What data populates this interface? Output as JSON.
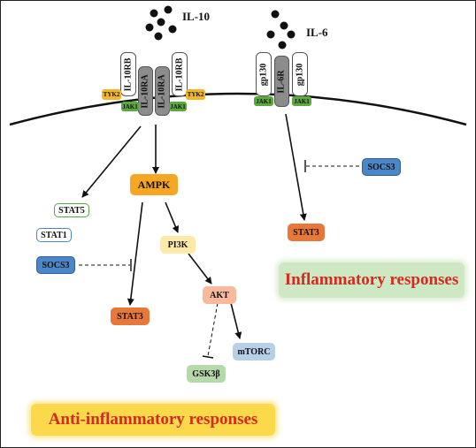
{
  "ligands": {
    "il10": "IL-10",
    "il6": "IL-6"
  },
  "il10_receptor": {
    "chains": [
      "IL-10RB",
      "IL-10RA",
      "IL-10RA",
      "IL-10RB"
    ],
    "tyk2": "TYK2",
    "jak1": "JAK1"
  },
  "il6_receptor": {
    "chains": [
      "gp130",
      "IL-6R",
      "gp130"
    ],
    "jak1": "JAK1"
  },
  "nodes": {
    "ampk": "AMPK",
    "stat5": "STAT5",
    "stat1": "STAT1",
    "socs3_left": "SOCS3",
    "stat3_left": "STAT3",
    "pi3k": "PI3K",
    "akt": "AKT",
    "mtorc": "mTORC",
    "gsk3b": "GSK3β",
    "socs3_right": "SOCS3",
    "stat3_right": "STAT3"
  },
  "banners": {
    "anti": "Anti-inflammatory responses",
    "inflammatory": "Inflammatory responses"
  },
  "colors": {
    "ampk": "#f5a623",
    "stat3": "#e8783a",
    "socs3": "#4a86c8",
    "pi3k": "#fde9a8",
    "akt": "#f9b99c",
    "mtorc": "#b8cfe8",
    "gsk3b": "#b5d9a8",
    "jak1": "#5aa83e",
    "tyk2": "#f2b62a",
    "receptor_dark": "#8c8c8c",
    "anti_banner": "#fbd94a",
    "inflammatory_banner": "#cfe8c4",
    "banner_text": "#d42a1f"
  }
}
